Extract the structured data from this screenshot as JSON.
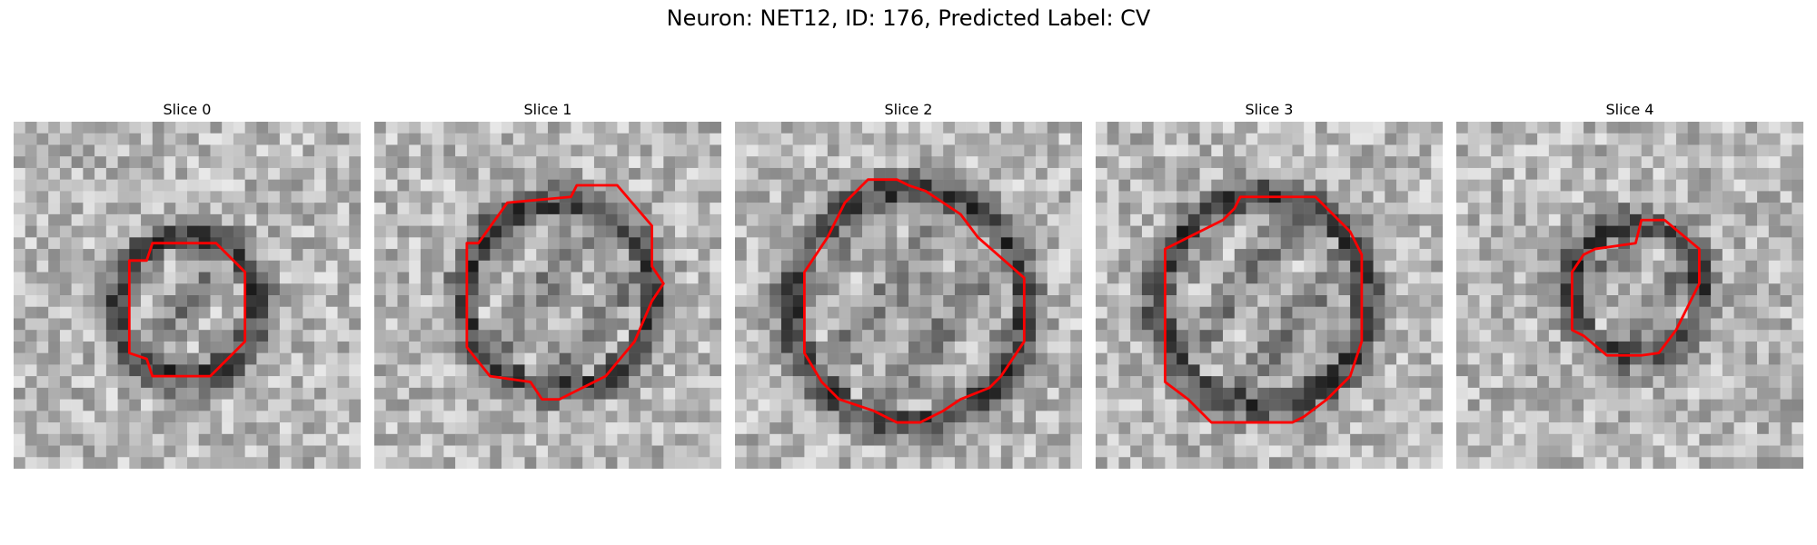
{
  "figure": {
    "title": "Neuron: NET12, ID: 176, Predicted Label: CV",
    "outline_color": "#ff0000"
  },
  "panels": [
    {
      "title": "Slice 0"
    },
    {
      "title": "Slice 1"
    },
    {
      "title": "Slice 2"
    },
    {
      "title": "Slice 3"
    },
    {
      "title": "Slice 4"
    }
  ]
}
